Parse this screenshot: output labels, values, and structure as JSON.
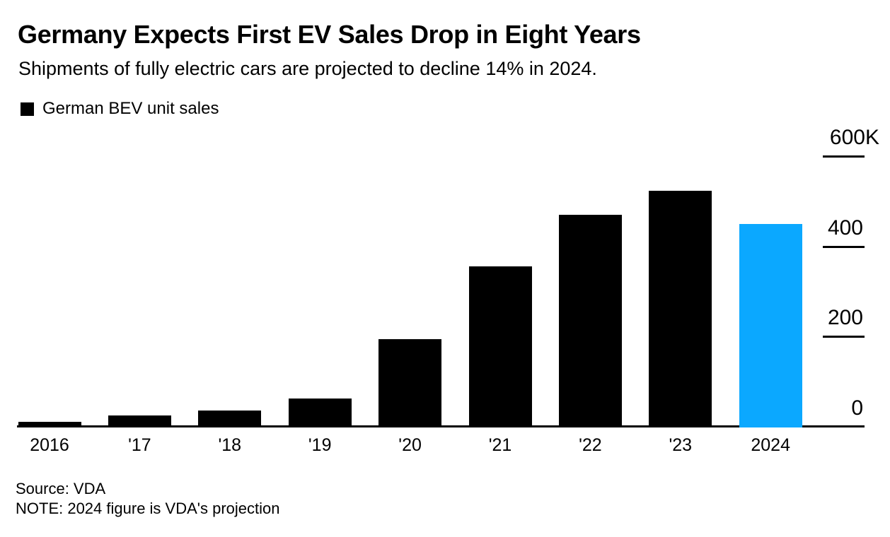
{
  "header": {
    "title": "Germany Expects First EV Sales Drop in Eight Years",
    "subtitle": "Shipments of fully electric cars are projected to decline 14% in 2024."
  },
  "legend": {
    "label": "German BEV unit sales",
    "swatch_color": "#000000"
  },
  "chart_data": {
    "type": "bar",
    "title": "German BEV unit sales",
    "categories": [
      "2016",
      "'17",
      "'18",
      "'19",
      "'20",
      "'21",
      "'22",
      "'23",
      "2024"
    ],
    "values_thousands": [
      11,
      25,
      36,
      63,
      194,
      356,
      471,
      524,
      451
    ],
    "unit": "K (thousand units)",
    "ylim": [
      0,
      600
    ],
    "yticks": [
      {
        "label": "600K",
        "value": 600
      },
      {
        "label": "400",
        "value": 400
      },
      {
        "label": "200",
        "value": 200
      },
      {
        "label": "0",
        "value": 0
      }
    ],
    "grid": false,
    "legend_position": "top-left",
    "yaxis_side": "right",
    "bar_color_default": "#000000",
    "bar_color_highlight": "#0BA8FF",
    "highlight_category": "2024",
    "axis_color": "#000000"
  },
  "footer": {
    "source": "Source: VDA",
    "note": "NOTE: 2024 figure is VDA's projection"
  }
}
